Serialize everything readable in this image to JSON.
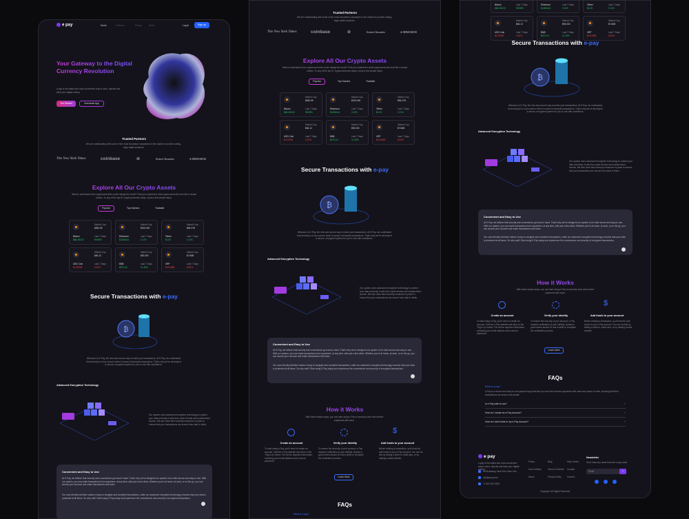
{
  "nav": {
    "logo": "e pay",
    "items": [
      "Home",
      "Features",
      "Pricing",
      "About"
    ],
    "login": "Log in",
    "signup": "Sign up"
  },
  "hero": {
    "title": "Your Gateway to the Digital Currency Revolution",
    "desc": "e-pay is the safest and most convenient way to send, deposit and keep your digital money.",
    "cta_primary": "Get Started",
    "cta_secondary": "Download App"
  },
  "partners": {
    "title": "Trusted Partners",
    "desc": "We are collaborating with some of the most innovative companies in the market to provide cutting-edge wallet solutions.",
    "brands": [
      "The New York Times",
      "coinbase",
      "⊘",
      "Robert Rosadio",
      "⟡ BINANCE"
    ]
  },
  "explore": {
    "title": "Explore All Our Crypto Assets",
    "desc": "Want to understand how cryptocurrencies could change the world? First-you experience what cryptocurrencies look like in actual tokens. To any of the top 8+ cryptocurrencies today, in just a few simple steps.",
    "tabs": [
      "Popular",
      "Top Gainers",
      "Tradable"
    ],
    "coins": [
      {
        "name": "Bitcoin",
        "cap_label": "Market Cap",
        "cap": "$450.95",
        "price": "$68,453.22",
        "chg_label": "Last 7 Days",
        "chg": "98.98%",
        "up": true
      },
      {
        "name": "Ethereum",
        "cap_label": "Market Cap",
        "cap": "$190,000",
        "price": "$3,868.61",
        "chg_label": "Last 7 Days",
        "chg": "3.11%",
        "up": true
      },
      {
        "name": "Tether",
        "cap_label": "Market Cap",
        "cap": "$96.27B",
        "price": "$1.00",
        "chg_label": "Last 7 Days",
        "chg": "0.11%",
        "up": true
      },
      {
        "name": "USD Coin",
        "cap_label": "Market Cap",
        "cap": "$46.12",
        "price": "$1.00000",
        "chg_label": "Last 7 Days",
        "chg": "0.00%",
        "up": false
      },
      {
        "name": "BNB",
        "cap_label": "Market Cap",
        "cap": "$92,000",
        "price": "$573.16",
        "chg_label": "Last 7 Days",
        "chg": "11.40%",
        "up": true
      },
      {
        "name": "XRP",
        "cap_label": "Market Cap",
        "cap": "$7.66B",
        "price": "$0.51689",
        "chg_label": "Last 7 Days",
        "chg": "8.40%",
        "up": false
      }
    ]
  },
  "secure": {
    "title_a": "Secure Transactions with",
    "title_b": "e-pay",
    "desc": "Welcome to E-Pay, the new and secure way to make your transactions. At E-Pay, we understand that security is a top concern when it comes to financial transactions. That's why we've developed a secure, encrypted system for you to use with confidence."
  },
  "encryption": {
    "title": "Advanced Encryption Technology",
    "desc": "Our system uses advanced encryption technology to protect your data and keep it safe from cyber threats and unauthorized access. We also have strict security measures in place to ensure that your transactions are secure from start to finish."
  },
  "convenient": {
    "title": "Convenient and Easy to Use",
    "p1": "At E-Pay, we believe that security and convenience go hand in hand. That's why we've designed our system to be both secure and easy to use. With our system, you can make transactions from anywhere, at any time, with just a few clicks. Whether you're at home, at work, or on the go, you can access your account and make transactions with ease.",
    "p2": "Our user-friendly interface makes it easy to navigate and complete transactions, while our advanced encryption technology ensures that your data is protected at all times. So why wait? Start using E-Pay today and experience the convenience and security of encrypted transactions."
  },
  "how": {
    "title": "How it Works",
    "desc": "With these simple steps, you can start using e-Pay to securely send and receive payments with ease.",
    "steps": [
      {
        "title": "Create an account",
        "desc": "To start using e-Pay, you'll need to create an account. Visit the e-Pay website and click on the \"Sign Up\" button. Fill out the required information, including your email address and a secure password."
      },
      {
        "title": "Verify your identity",
        "desc": "To ensure the security of your account, e-Pay requires verification of your identity. Upload a government-issued ID and a selfie to complete the verification process."
      },
      {
        "title": "Add funds to your account",
        "desc": "Before making a transaction, you'll need to add funds to your e-Pay account. You can do this by linking a debit or credit card, or by making a bank transfer."
      }
    ],
    "more": "Learn More"
  },
  "faqs": {
    "title": "FAQs",
    "link": "What is e-pay?",
    "intro": "e-Pay is a secure and easy-to-use payment app that lets you send and receive payments with ease and peace of mind, knowing that their transactions are secure and private.",
    "items": [
      "Is e-Pay safe to use?",
      "How do I create an e-Pay account?",
      "How do I add funds to my e-Pay account?"
    ]
  },
  "footer": {
    "logo": "e pay",
    "tagline": "e-pay is the safest and most convenient way to send, deposit and keep your digital money.",
    "address": "99 Broadway, New York, New York",
    "email": "info@epay.com",
    "phone": "+1 800 000 0000",
    "col1": [
      "Prices",
      "How it Works",
      "About"
    ],
    "col2": [
      "Blog",
      "Terms of Service",
      "Privacy Policy"
    ],
    "col3": [
      "Help Center",
      "Contact",
      "Careers"
    ],
    "newsletter": "Newsletter",
    "news_desc": "Don't miss any news from the e-pay world.",
    "email_ph": "Email",
    "copy": "Copyright. All Rights Reserved."
  }
}
